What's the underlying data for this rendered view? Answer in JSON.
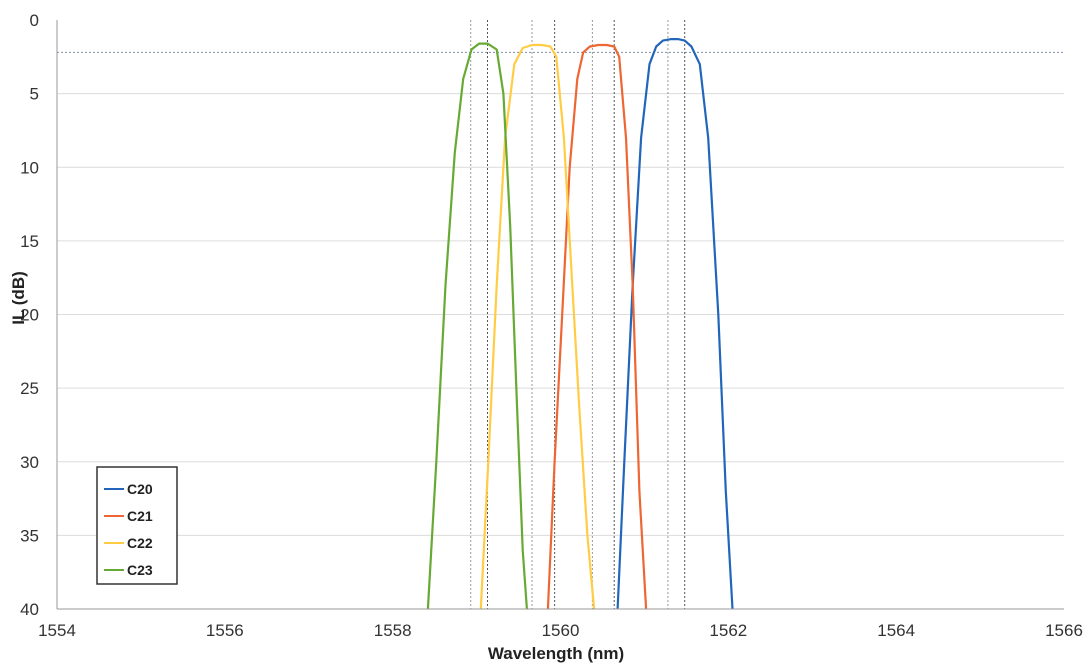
{
  "chart_data": {
    "type": "line",
    "title": "",
    "xlabel": "Wavelength (nm)",
    "ylabel": "IL (dB)",
    "xlim": [
      1554,
      1566
    ],
    "ylim": [
      0,
      40
    ],
    "y_inverted": true,
    "x_ticks": [
      "1554",
      "1556",
      "1558",
      "1560",
      "1562",
      "1564",
      "1566"
    ],
    "y_ticks": [
      "0",
      "5",
      "10",
      "15",
      "20",
      "25",
      "30",
      "35",
      "40"
    ],
    "grid": "horizontal",
    "legend_position": "bottom-left",
    "reference_line_y": 2.2,
    "marker_lines_x": [
      1558.93,
      1559.13,
      1559.66,
      1559.93,
      1560.38,
      1560.64,
      1561.28,
      1561.48
    ],
    "series": [
      {
        "name": "C20",
        "color": "#2266BB",
        "x": [
          1560.68,
          1560.76,
          1560.86,
          1560.96,
          1561.06,
          1561.14,
          1561.22,
          1561.32,
          1561.4,
          1561.48,
          1561.56,
          1561.66,
          1561.76,
          1561.88,
          1561.97,
          1562.05
        ],
        "y": [
          40,
          30,
          18,
          8,
          3,
          1.8,
          1.4,
          1.3,
          1.3,
          1.4,
          1.8,
          3,
          8,
          20,
          32,
          40
        ]
      },
      {
        "name": "C21",
        "color": "#EE6633",
        "x": [
          1559.85,
          1559.93,
          1560.02,
          1560.11,
          1560.2,
          1560.27,
          1560.35,
          1560.45,
          1560.55,
          1560.64,
          1560.7,
          1560.78,
          1560.86,
          1560.94,
          1561.02
        ],
        "y": [
          40,
          30,
          20,
          10,
          4,
          2.2,
          1.8,
          1.7,
          1.7,
          1.8,
          2.5,
          8,
          18,
          32,
          40
        ]
      },
      {
        "name": "C22",
        "color": "#FFCC44",
        "x": [
          1559.05,
          1559.14,
          1559.24,
          1559.34,
          1559.45,
          1559.55,
          1559.66,
          1559.78,
          1559.88,
          1559.95,
          1560.04,
          1560.12,
          1560.22,
          1560.32,
          1560.4
        ],
        "y": [
          40,
          30,
          18,
          8,
          3,
          1.9,
          1.7,
          1.7,
          1.8,
          2.5,
          8,
          16,
          26,
          35,
          40
        ]
      },
      {
        "name": "C23",
        "color": "#66AA33",
        "x": [
          1558.42,
          1558.52,
          1558.63,
          1558.74,
          1558.84,
          1558.94,
          1559.03,
          1559.13,
          1559.24,
          1559.32,
          1559.4,
          1559.48,
          1559.55,
          1559.6
        ],
        "y": [
          40,
          30,
          18,
          9,
          4,
          2.0,
          1.6,
          1.6,
          2.0,
          5,
          14,
          26,
          36,
          40
        ]
      }
    ]
  }
}
